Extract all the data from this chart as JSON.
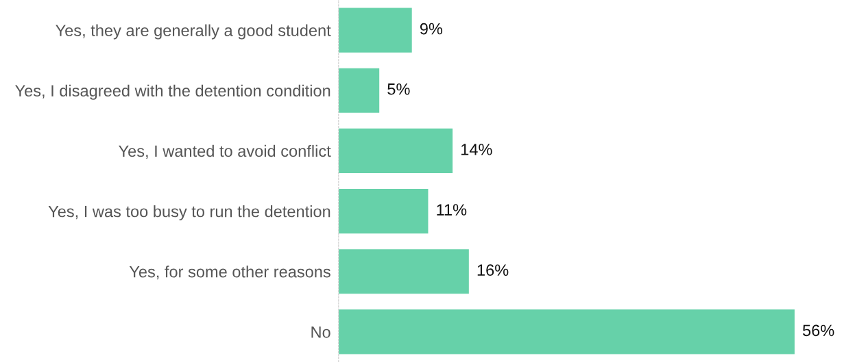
{
  "chart_data": {
    "type": "bar",
    "orientation": "horizontal",
    "categories": [
      "Yes, they are generally a good student",
      "Yes, I disagreed with the detention condition",
      "Yes, I wanted to avoid conflict",
      "Yes, I was too busy to run the detention",
      "Yes, for some other reasons",
      "No"
    ],
    "values": [
      9,
      5,
      14,
      11,
      16,
      56
    ],
    "value_labels": [
      "9%",
      "5%",
      "14%",
      "11%",
      "16%",
      "56%"
    ],
    "color": "#66d1a9",
    "grid": false,
    "tick_labels": "y"
  }
}
